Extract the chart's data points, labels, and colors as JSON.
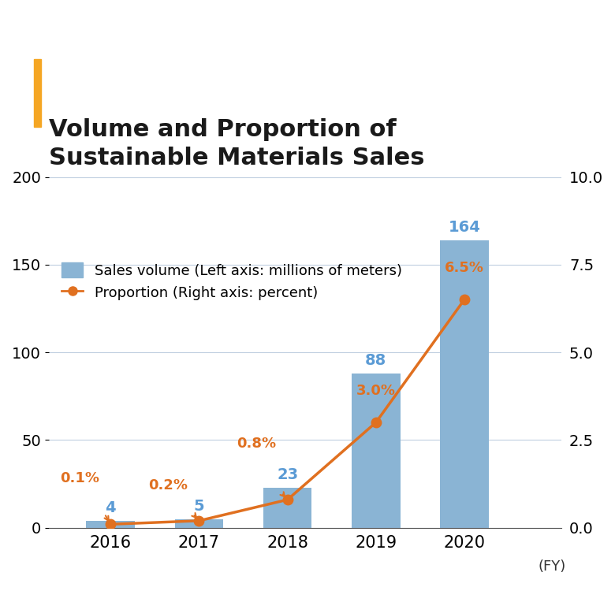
{
  "title_line1": "Volume and Proportion of",
  "title_line2": "Sustainable Materials Sales",
  "title_color": "#1a1a1a",
  "title_accent_color": "#F5A623",
  "years": [
    2016,
    2017,
    2018,
    2019,
    2020
  ],
  "sales_volume": [
    4,
    5,
    23,
    88,
    164
  ],
  "proportion": [
    0.1,
    0.2,
    0.8,
    3.0,
    6.5
  ],
  "proportion_labels": [
    "0.1%",
    "0.2%",
    "0.8%",
    "3.0%",
    "6.5%"
  ],
  "bar_color": "#8ab4d4",
  "line_color": "#E07020",
  "marker_color": "#E07020",
  "legend_bar_label": "Sales volume (Left axis: millions of meters)",
  "legend_line_label": "Proportion (Right axis: percent)",
  "ylabel_left": "",
  "ylabel_right": "",
  "ylim_left": [
    0,
    220
  ],
  "ylim_right": [
    0,
    11
  ],
  "yticks_left": [
    0,
    50,
    100,
    150,
    200
  ],
  "yticks_right": [
    0.0,
    2.5,
    5.0,
    7.5,
    10.0
  ],
  "fy_label": "(FY)",
  "grid_color": "#c0cfe0",
  "background_color": "#ffffff",
  "bar_label_color": "#5b9bd5",
  "proportion_label_color": "#E07020"
}
